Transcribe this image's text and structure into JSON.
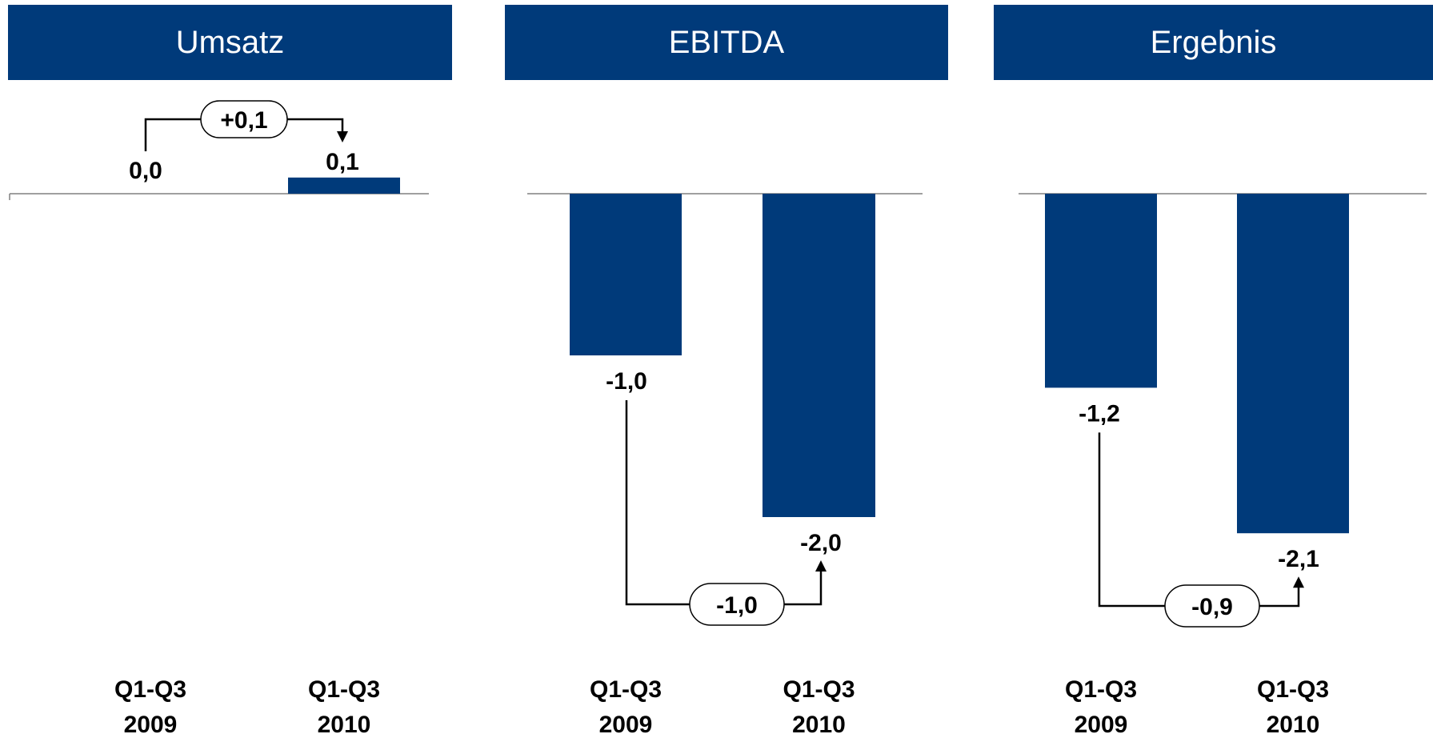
{
  "colors": {
    "bar": "#003a7a",
    "header_bg": "#003a7a",
    "header_text": "#ffffff",
    "axis": "#808080",
    "text": "#000000"
  },
  "chart_data": [
    {
      "type": "bar",
      "title": "Umsatz",
      "categories": [
        [
          "Q1-Q3",
          "2009"
        ],
        [
          "Q1-Q3",
          "2010"
        ]
      ],
      "values": [
        0.0,
        0.1
      ],
      "value_labels": [
        "0,0",
        "0,1"
      ],
      "change_label": "+0,1",
      "xlabel": "",
      "ylabel": ""
    },
    {
      "type": "bar",
      "title": "EBITDA",
      "categories": [
        [
          "Q1-Q3",
          "2009"
        ],
        [
          "Q1-Q3",
          "2010"
        ]
      ],
      "values": [
        -1.0,
        -2.0
      ],
      "value_labels": [
        "-1,0",
        "-2,0"
      ],
      "change_label": "-1,0",
      "xlabel": "",
      "ylabel": ""
    },
    {
      "type": "bar",
      "title": "Ergebnis",
      "categories": [
        [
          "Q1-Q3",
          "2009"
        ],
        [
          "Q1-Q3",
          "2010"
        ]
      ],
      "values": [
        -1.2,
        -2.1
      ],
      "value_labels": [
        "-1,2",
        "-2,1"
      ],
      "change_label": "-0,9",
      "xlabel": "",
      "ylabel": ""
    }
  ]
}
